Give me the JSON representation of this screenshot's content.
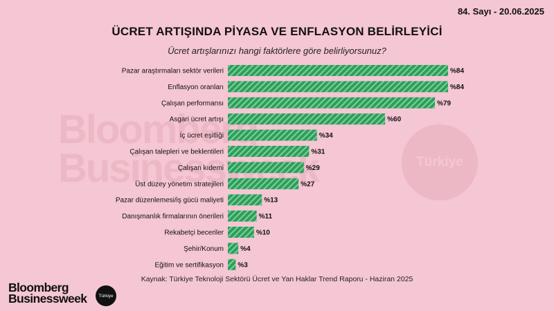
{
  "issue": "84. Sayı - 20.06.2025",
  "title": "ÜCRET ARTIŞINDA PİYASA VE ENFLASYON BELİRLEYİCİ",
  "subtitle": "Ücret artışlarınızı hangi faktörlere göre belirliyorsunuz?",
  "watermark": {
    "text_line1": "Bloomberg",
    "text_line2": "Businessweek",
    "circle_text": "Türkiye"
  },
  "source": "Kaynak: Türkiye Teknoloji Sektörü Ücret ve Yan Haklar Trend Raporu - Haziran 2025",
  "logo": {
    "line1": "Bloomberg",
    "line2": "Businessweek",
    "badge": "Türkiye"
  },
  "colors": {
    "background": "#f5c6d3",
    "bar": "#2e9e5b",
    "bar_stripe": "#7fd19c",
    "watermark": "#ecb8c5"
  },
  "chart_data": {
    "type": "bar",
    "orientation": "horizontal",
    "value_prefix": "%",
    "xlim": [
      0,
      84
    ],
    "grid": false,
    "categories": [
      "Pazar araştırmaları sektör verileri",
      "Enflasyon oranları",
      "Çalışan performansı",
      "Asgari ücret artışı",
      "İç ücret eşitliği",
      "Çalışan talepleri ve beklentileri",
      "Çalışan kıdemi",
      "Üst düzey yönetim stratejileri",
      "Pazar düzenlemesi/iş gücü maliyeti",
      "Danışmanlık firmalarının önerileri",
      "Rekabetçi beceriler",
      "Şehir/Konum",
      "Eğitim ve sertifikasyon"
    ],
    "values": [
      84,
      84,
      79,
      60,
      34,
      31,
      29,
      27,
      13,
      11,
      10,
      4,
      3
    ],
    "data_labels": [
      "%84",
      "%84",
      "%79",
      "%60",
      "%34",
      "%31",
      "%29",
      "%27",
      "%13",
      "%11",
      "%10",
      "%4",
      "%3"
    ]
  }
}
